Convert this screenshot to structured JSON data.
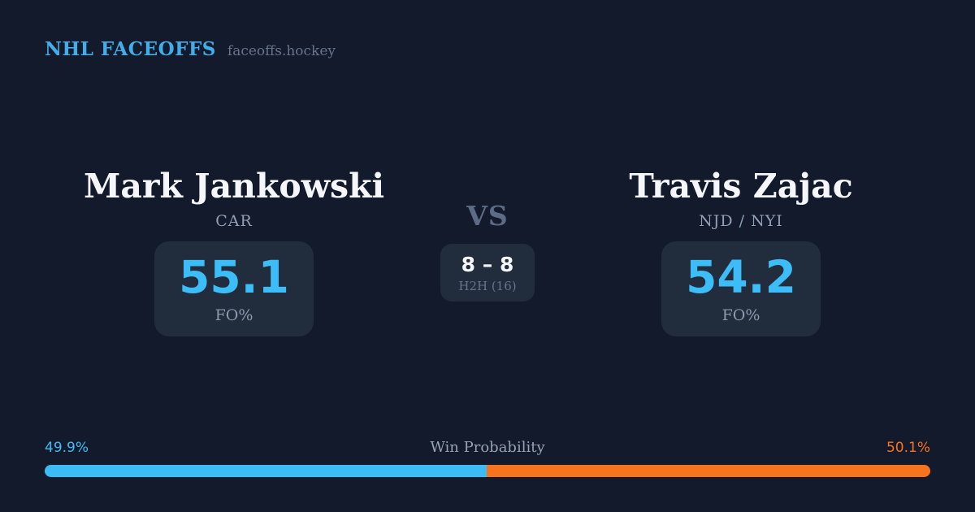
{
  "header": {
    "wordmark": "NHL FACEOFFS",
    "domain": "faceoffs.hockey"
  },
  "matchup": {
    "vs_label": "VS",
    "h2h": {
      "score": "8 – 8",
      "label": "H2H (16)"
    },
    "players": [
      {
        "name": "Mark Jankowski",
        "team": "CAR",
        "stat_value": "55.1",
        "stat_label": "FO%"
      },
      {
        "name": "Travis Zajac",
        "team": "NJD / NYI",
        "stat_value": "54.2",
        "stat_label": "FO%"
      }
    ]
  },
  "win_probability": {
    "title": "Win Probability",
    "left_pct_label": "49.9%",
    "right_pct_label": "50.1%",
    "left_value": 49.9,
    "right_value": 50.1
  },
  "colors": {
    "background": "#121a2b",
    "card": "#212c3d",
    "accent_blue_wordmark": "#43ade9",
    "stat_blue": "#3dbdf7",
    "bar_blue": "#3bbcf5",
    "bar_orange": "#f8731d",
    "text_white": "#f5f6f9",
    "text_muted": "#67748a"
  }
}
